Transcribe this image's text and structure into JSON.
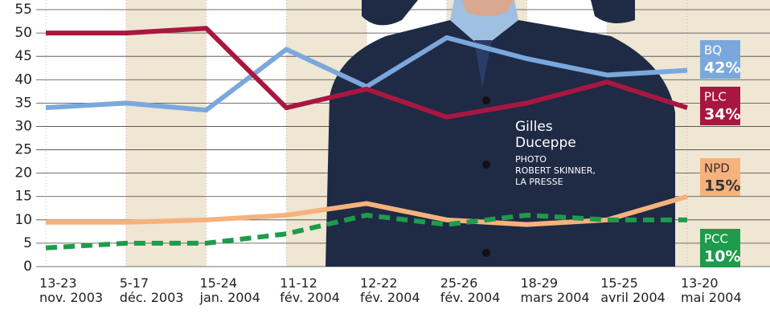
{
  "chart_data": {
    "type": "line",
    "categories": [
      "13-23\nnov. 2003",
      "5-17\ndéc. 2003",
      "15-24\njan. 2004",
      "11-12\nfév. 2004",
      "12-22\nfév. 2004",
      "25-26\nfév. 2004",
      "18-29\nmars 2004",
      "15-25\navril 2004",
      "13-20\nmai 2004"
    ],
    "series": [
      {
        "name": "BQ",
        "color": "#7ba8dc",
        "values": [
          34,
          35,
          33.5,
          46.5,
          38.5,
          49,
          44.5,
          41,
          42
        ],
        "end_label": "42%"
      },
      {
        "name": "PLC",
        "color": "#a8173f",
        "values": [
          50,
          50,
          51,
          34,
          38,
          32,
          35,
          39.5,
          34
        ],
        "end_label": "34%"
      },
      {
        "name": "NPD",
        "color": "#f6b27c",
        "values": [
          9.5,
          9.5,
          10,
          11,
          13.5,
          10,
          9,
          10,
          15
        ],
        "end_label": "15%"
      },
      {
        "name": "PCC",
        "color": "#1e9b4b",
        "values": [
          4,
          5,
          5,
          7,
          11,
          9,
          11,
          10,
          10
        ],
        "end_label": "10%",
        "dashed": true
      }
    ],
    "ylim": [
      0,
      55
    ],
    "yticks": [
      0,
      5,
      10,
      15,
      20,
      25,
      30,
      35,
      40,
      45,
      50,
      55
    ],
    "grid": true,
    "annotations": {
      "name": "Gilles\nDuceppe",
      "credit": "PHOTO\nROBERT SKINNER,\nLA PRESSE"
    }
  }
}
